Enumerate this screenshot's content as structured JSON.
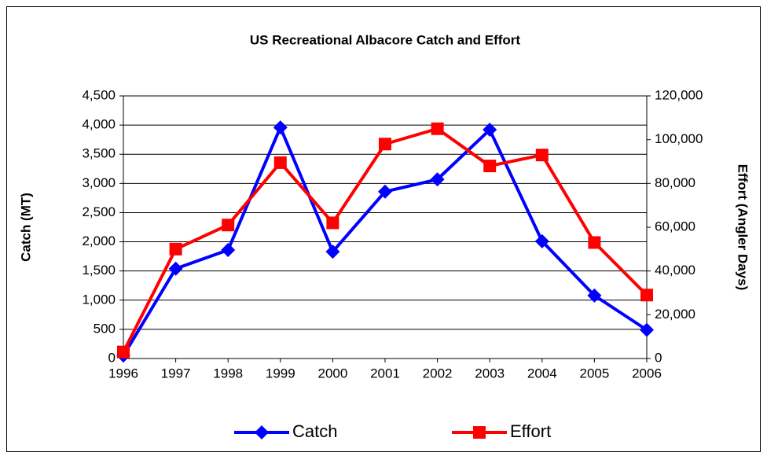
{
  "chart_data": {
    "type": "line",
    "title": "US Recreational Albacore Catch and Effort",
    "y_label": "Catch (MT)",
    "y2_label": "Effort (Angler Days)",
    "categories": [
      "1996",
      "1997",
      "1998",
      "1999",
      "2000",
      "2001",
      "2002",
      "2003",
      "2004",
      "2005",
      "2006"
    ],
    "series": [
      {
        "name": "Catch",
        "color": "#0000ff",
        "marker": "diamond",
        "values": [
          50,
          1540,
          1860,
          3960,
          1830,
          2860,
          3070,
          3920,
          2010,
          1080,
          490
        ]
      },
      {
        "name": "Effort",
        "color": "#ff0000",
        "marker": "square",
        "axis": "y2",
        "values": [
          3000,
          50000,
          61000,
          89500,
          62000,
          98000,
          105000,
          88000,
          93000,
          53000,
          29000
        ]
      }
    ],
    "ylim": [
      0,
      4500
    ],
    "yticks": [
      0,
      500,
      {
        "value": 1000,
        "label": "1,000"
      },
      {
        "value": 1500,
        "label": "1,500"
      },
      {
        "value": 2000,
        "label": "2,000"
      },
      {
        "value": 2500,
        "label": "2,500"
      },
      {
        "value": 3000,
        "label": "3,000"
      },
      {
        "value": 3500,
        "label": "3,500"
      },
      {
        "value": 4000,
        "label": "4,000"
      },
      {
        "value": 4500,
        "label": "4,500"
      }
    ],
    "y2lim": [
      0,
      120000
    ],
    "y2ticks": [
      0,
      {
        "value": 20000,
        "label": "20,000"
      },
      {
        "value": 40000,
        "label": "40,000"
      },
      {
        "value": 60000,
        "label": "60,000"
      },
      {
        "value": 80000,
        "label": "80,000"
      },
      {
        "value": 100000,
        "label": "100,000"
      },
      {
        "value": 120000,
        "label": "120,000"
      }
    ],
    "grid": true,
    "legend": "bottom"
  }
}
